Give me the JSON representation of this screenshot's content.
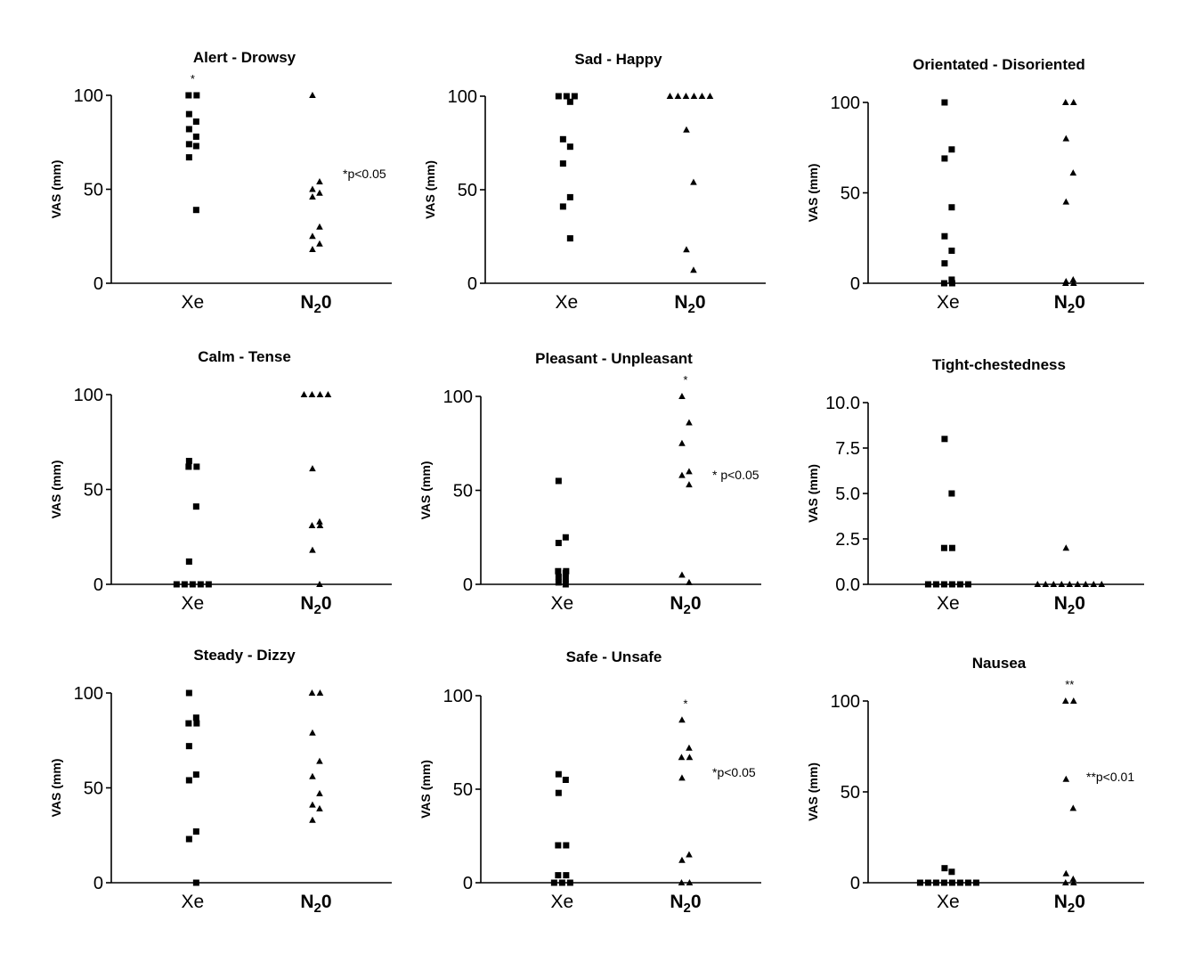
{
  "chart_data": [
    {
      "type": "scatter",
      "title": "Alert - Drowsy",
      "ylabel": "VAS (mm)",
      "categories": [
        "Xe",
        "N20"
      ],
      "yticks": [
        "0",
        "50",
        "100"
      ],
      "ylim": [
        0,
        100
      ],
      "series": [
        {
          "category": "Xe",
          "marker": "square",
          "values": [
            100,
            100,
            90,
            86,
            82,
            78,
            74,
            73,
            67,
            39
          ]
        },
        {
          "category": "N20",
          "marker": "triangle",
          "values": [
            100,
            54,
            50,
            48,
            46,
            30,
            25,
            21,
            18
          ]
        }
      ],
      "significance_mark": "*",
      "annotation": "*p<0.05"
    },
    {
      "type": "scatter",
      "title": "Sad - Happy",
      "ylabel": "VAS (mm)",
      "categories": [
        "Xe",
        "N20"
      ],
      "yticks": [
        "0",
        "50",
        "100"
      ],
      "ylim": [
        0,
        100
      ],
      "series": [
        {
          "category": "Xe",
          "marker": "square",
          "values": [
            100,
            100,
            100,
            97,
            77,
            73,
            64,
            46,
            41,
            24
          ]
        },
        {
          "category": "N20",
          "marker": "triangle",
          "values": [
            100,
            100,
            100,
            100,
            100,
            100,
            82,
            54,
            18,
            7
          ]
        }
      ],
      "significance_mark": "",
      "annotation": ""
    },
    {
      "type": "scatter",
      "title": "Orientated - Disoriented",
      "ylabel": "VAS (mm)",
      "categories": [
        "Xe",
        "N20"
      ],
      "yticks": [
        "0",
        "50",
        "100"
      ],
      "ylim": [
        0,
        100
      ],
      "series": [
        {
          "category": "Xe",
          "marker": "square",
          "values": [
            100,
            74,
            69,
            42,
            26,
            18,
            11,
            2,
            0,
            0
          ]
        },
        {
          "category": "N20",
          "marker": "triangle",
          "values": [
            100,
            100,
            80,
            61,
            45,
            2,
            0,
            0,
            1
          ]
        }
      ],
      "significance_mark": "",
      "annotation": ""
    },
    {
      "type": "scatter",
      "title": "Calm - Tense",
      "ylabel": "VAS (mm)",
      "categories": [
        "Xe",
        "N20"
      ],
      "yticks": [
        "0",
        "50",
        "100"
      ],
      "ylim": [
        0,
        100
      ],
      "series": [
        {
          "category": "Xe",
          "marker": "square",
          "values": [
            65,
            62,
            62,
            41,
            12,
            0,
            0,
            0,
            0,
            0
          ]
        },
        {
          "category": "N20",
          "marker": "triangle",
          "values": [
            100,
            100,
            100,
            100,
            61,
            33,
            31,
            31,
            18,
            0
          ]
        }
      ],
      "significance_mark": "",
      "annotation": ""
    },
    {
      "type": "scatter",
      "title": "Pleasant - Unpleasant",
      "ylabel": "VAS (mm)",
      "categories": [
        "Xe",
        "N20"
      ],
      "yticks": [
        "0",
        "50",
        "100"
      ],
      "ylim": [
        0,
        100
      ],
      "series": [
        {
          "category": "Xe",
          "marker": "square",
          "values": [
            55,
            25,
            22,
            7,
            7,
            6,
            4,
            3,
            1,
            0
          ]
        },
        {
          "category": "N20",
          "marker": "triangle",
          "values": [
            100,
            86,
            75,
            60,
            58,
            53,
            5,
            1
          ]
        }
      ],
      "significance_mark": "*",
      "annotation": "* p<0.05"
    },
    {
      "type": "scatter",
      "title": "Tight-chestedness",
      "ylabel": "VAS (mm)",
      "categories": [
        "Xe",
        "N20"
      ],
      "yticks": [
        "0.0",
        "2.5",
        "5.0",
        "7.5",
        "10.0"
      ],
      "ylim": [
        0,
        10
      ],
      "series": [
        {
          "category": "Xe",
          "marker": "square",
          "values": [
            8,
            5,
            2,
            2,
            0,
            0,
            0,
            0,
            0,
            0
          ]
        },
        {
          "category": "N20",
          "marker": "triangle",
          "values": [
            2,
            0,
            0,
            0,
            0,
            0,
            0,
            0,
            0,
            0
          ]
        }
      ],
      "significance_mark": "",
      "annotation": ""
    },
    {
      "type": "scatter",
      "title": "Steady - Dizzy",
      "ylabel": "VAS (mm)",
      "categories": [
        "Xe",
        "N20"
      ],
      "yticks": [
        "0",
        "50",
        "100"
      ],
      "ylim": [
        0,
        100
      ],
      "series": [
        {
          "category": "Xe",
          "marker": "square",
          "values": [
            100,
            87,
            84,
            84,
            72,
            57,
            54,
            27,
            23,
            0
          ]
        },
        {
          "category": "N20",
          "marker": "triangle",
          "values": [
            100,
            100,
            79,
            64,
            56,
            47,
            41,
            39,
            33
          ]
        }
      ],
      "significance_mark": "",
      "annotation": ""
    },
    {
      "type": "scatter",
      "title": "Safe - Unsafe",
      "ylabel": "VAS (mm)",
      "categories": [
        "Xe",
        "N20"
      ],
      "yticks": [
        "0",
        "50",
        "100"
      ],
      "ylim": [
        0,
        100
      ],
      "series": [
        {
          "category": "Xe",
          "marker": "square",
          "values": [
            58,
            55,
            48,
            20,
            20,
            4,
            4,
            0,
            0,
            0
          ]
        },
        {
          "category": "N20",
          "marker": "triangle",
          "values": [
            87,
            72,
            67,
            67,
            56,
            15,
            12,
            0,
            0
          ]
        }
      ],
      "significance_mark": "*",
      "annotation": "*p<0.05"
    },
    {
      "type": "scatter",
      "title": "Nausea",
      "ylabel": "VAS (mm)",
      "categories": [
        "Xe",
        "N20"
      ],
      "yticks": [
        "0",
        "50",
        "100"
      ],
      "ylim": [
        0,
        100
      ],
      "series": [
        {
          "category": "Xe",
          "marker": "square",
          "values": [
            8,
            6,
            0,
            0,
            0,
            0,
            0,
            0,
            0,
            0
          ]
        },
        {
          "category": "N20",
          "marker": "triangle",
          "values": [
            100,
            100,
            57,
            41,
            5,
            2,
            0,
            0
          ]
        }
      ],
      "significance_mark": "**",
      "annotation": "**p<0.01"
    }
  ]
}
